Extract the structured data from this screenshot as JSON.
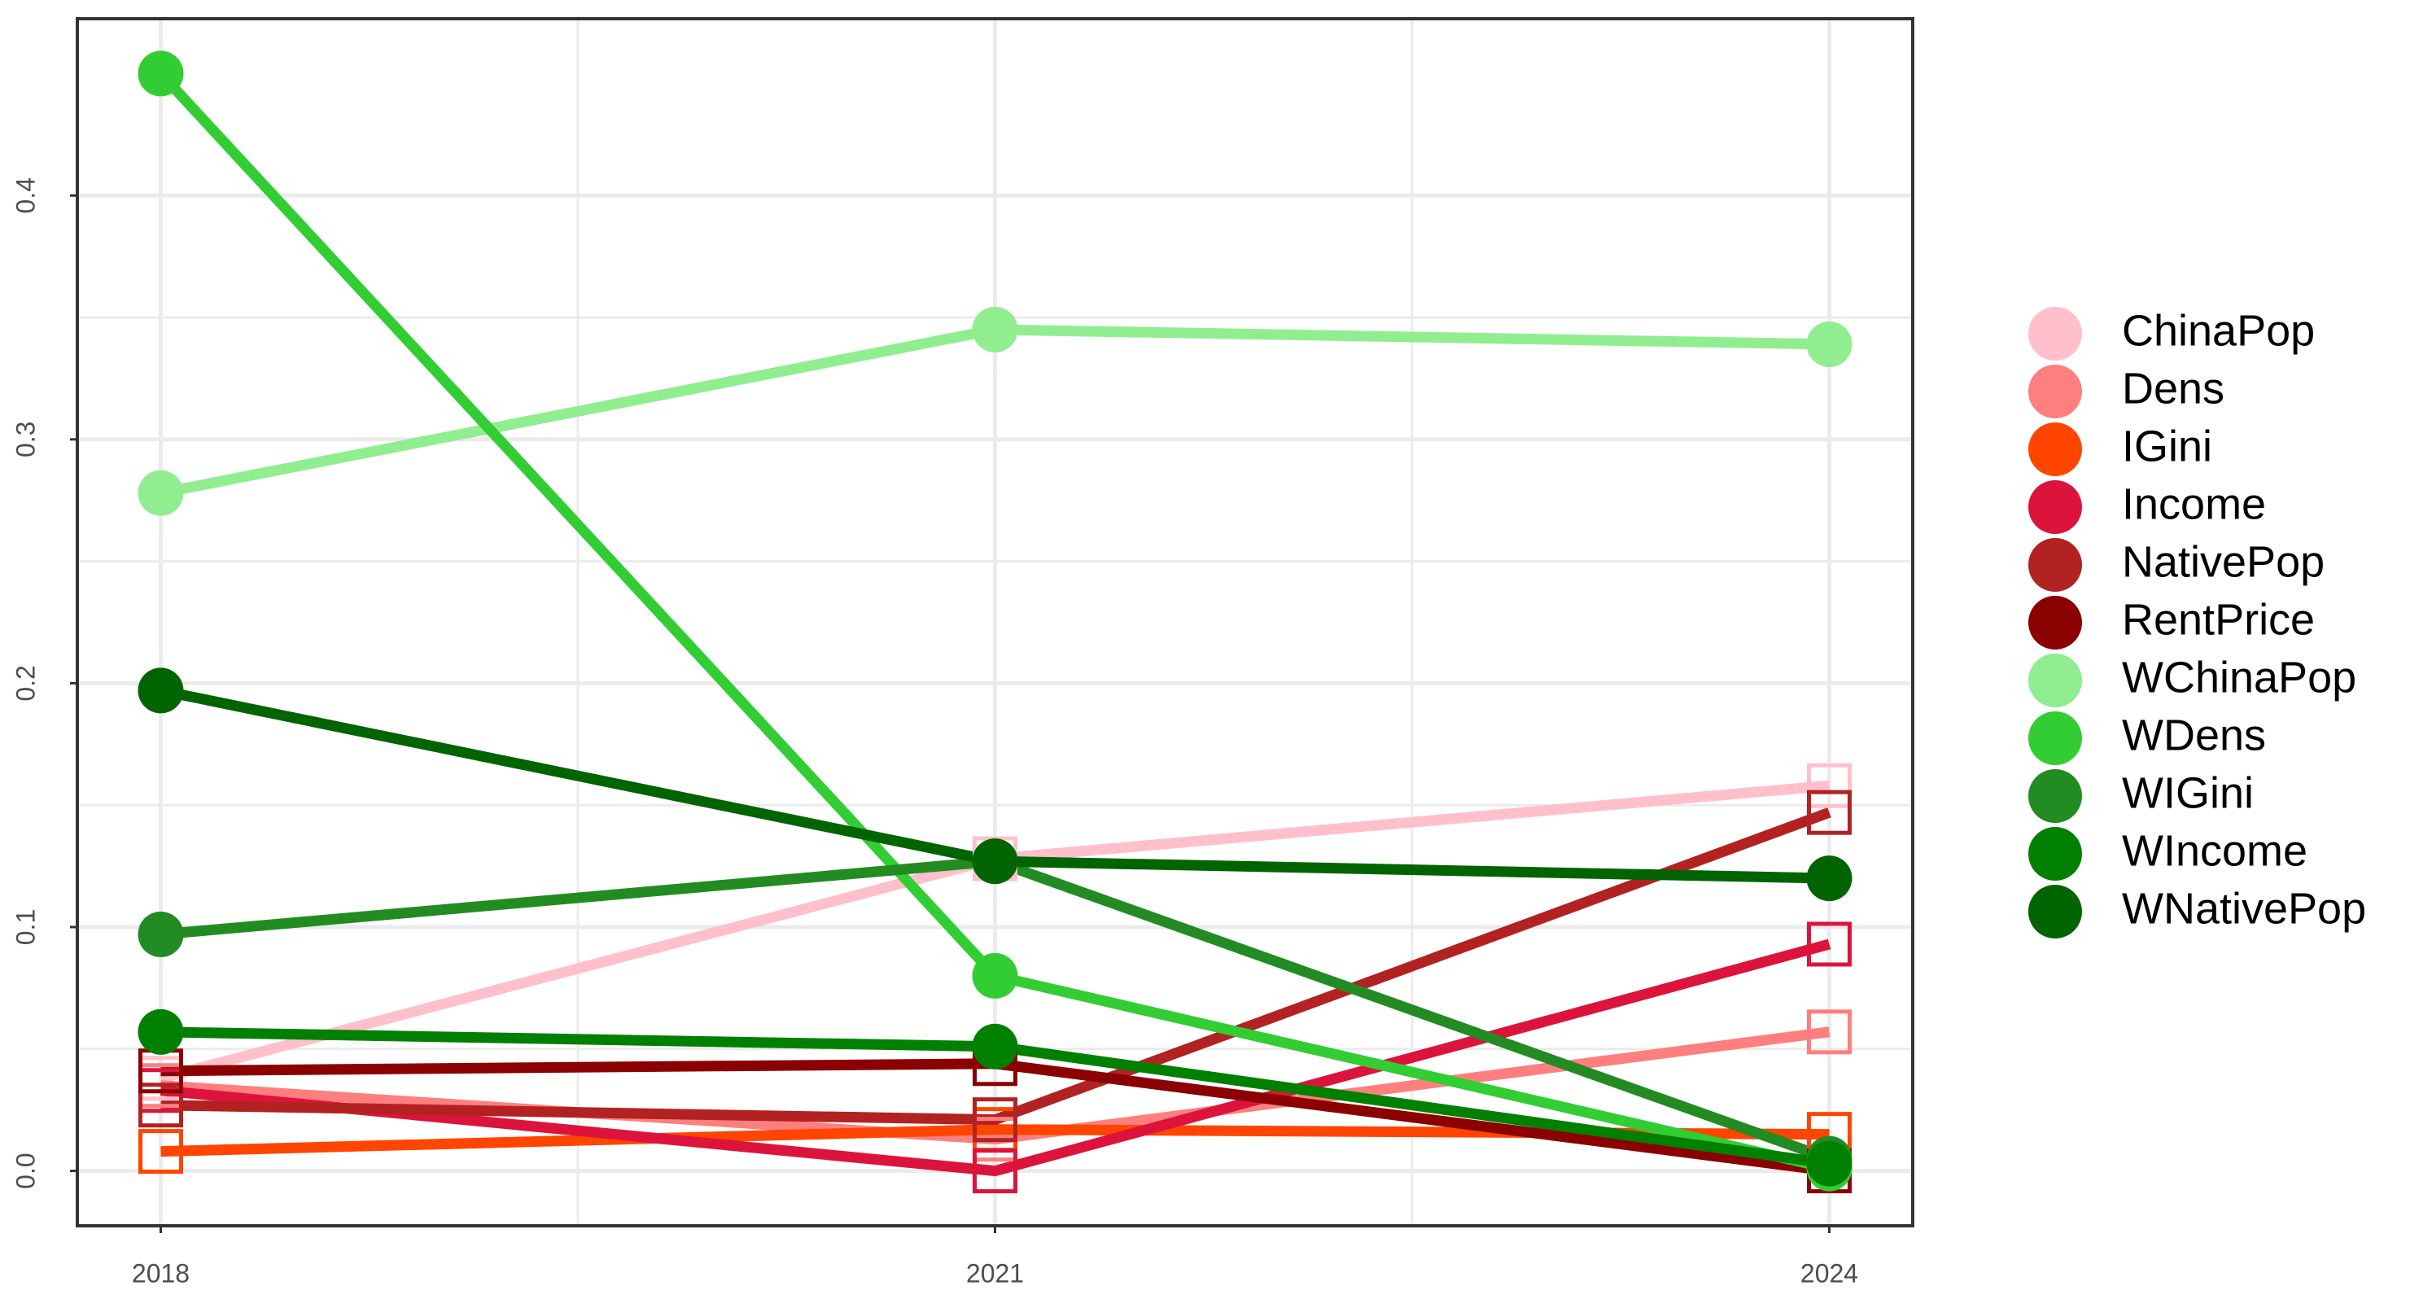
{
  "chart_data": {
    "type": "line",
    "x": [
      2018,
      2021,
      2024
    ],
    "xlim": [
      2017.7,
      2024.3
    ],
    "xticks": [
      2018,
      2021,
      2024
    ],
    "minor_xticks": [
      2019.5,
      2022.5
    ],
    "ylim": [
      -0.0225,
      0.4725
    ],
    "yticks": [
      {
        "value": 0,
        "label": "0.0"
      },
      0.1,
      0.2,
      0.3,
      0.4
    ],
    "minor_yticks": [
      0.05,
      0.15,
      0.25,
      0.35
    ],
    "grid": true,
    "legend": "right",
    "series": [
      {
        "name": "ChinaPop",
        "color": "#FFC0CB",
        "marker": "square",
        "values": [
          0.038,
          0.128,
          0.158
        ]
      },
      {
        "name": "Dens",
        "color": "#FF7F7F",
        "marker": "square",
        "values": [
          0.035,
          0.013,
          0.057
        ]
      },
      {
        "name": "IGini",
        "color": "#FF4500",
        "marker": "square",
        "values": [
          0.008,
          0.017,
          0.015
        ]
      },
      {
        "name": "Income",
        "color": "#DC143C",
        "marker": "square",
        "values": [
          0.033,
          0.0,
          0.093
        ]
      },
      {
        "name": "NativePop",
        "color": "#B22222",
        "marker": "square",
        "values": [
          0.027,
          0.021,
          0.147
        ]
      },
      {
        "name": "RentPrice",
        "color": "#8B0000",
        "marker": "square",
        "values": [
          0.041,
          0.044,
          0.0
        ]
      },
      {
        "name": "WChinaPop",
        "color": "#90EE90",
        "marker": "circle",
        "values": [
          0.278,
          0.345,
          0.339
        ]
      },
      {
        "name": "WDens",
        "color": "#32CD32",
        "marker": "circle",
        "values": [
          0.45,
          0.08,
          0.001
        ]
      },
      {
        "name": "WIGini",
        "color": "#228B22",
        "marker": "circle",
        "values": [
          0.097,
          0.127,
          0.005
        ]
      },
      {
        "name": "WIncome",
        "color": "#008000",
        "marker": "circle",
        "values": [
          0.057,
          0.051,
          0.003
        ]
      },
      {
        "name": "WNativePop",
        "color": "#006400",
        "marker": "circle",
        "values": [
          0.197,
          0.127,
          0.12
        ]
      }
    ]
  }
}
